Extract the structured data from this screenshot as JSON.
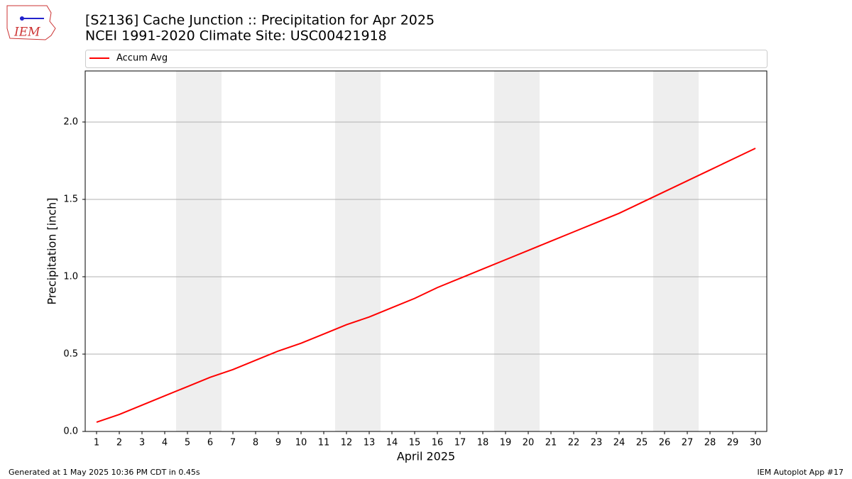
{
  "logo": "IEM",
  "footer": {
    "left": "Generated at 1 May 2025 10:36 PM CDT in 0.45s",
    "right": "IEM Autoplot App #17"
  },
  "chart_data": {
    "type": "line",
    "title": "[S2136] Cache Junction :: Precipitation for Apr 2025",
    "subtitle": "NCEI 1991-2020 Climate Site: USC00421918",
    "xlabel": "April 2025",
    "ylabel": "Precipitation [inch]",
    "x": [
      1,
      2,
      3,
      4,
      5,
      6,
      7,
      8,
      9,
      10,
      11,
      12,
      13,
      14,
      15,
      16,
      17,
      18,
      19,
      20,
      21,
      22,
      23,
      24,
      25,
      26,
      27,
      28,
      29,
      30
    ],
    "series": [
      {
        "name": "Accum Avg",
        "color": "#ff0000",
        "values": [
          0.06,
          0.11,
          0.17,
          0.23,
          0.29,
          0.35,
          0.4,
          0.46,
          0.52,
          0.57,
          0.63,
          0.69,
          0.74,
          0.8,
          0.86,
          0.93,
          0.99,
          1.05,
          1.11,
          1.17,
          1.23,
          1.29,
          1.35,
          1.41,
          1.48,
          1.55,
          1.62,
          1.69,
          1.76,
          1.83
        ]
      }
    ],
    "shaded_spans": [
      [
        4.5,
        6.5
      ],
      [
        11.5,
        13.5
      ],
      [
        18.5,
        20.5
      ],
      [
        25.5,
        27.5
      ]
    ],
    "shade_color": "#eeeeee",
    "xlim": [
      0.5,
      30.5
    ],
    "ylim": [
      0,
      2.33
    ],
    "xticks": [
      1,
      2,
      3,
      4,
      5,
      6,
      7,
      8,
      9,
      10,
      11,
      12,
      13,
      14,
      15,
      16,
      17,
      18,
      19,
      20,
      21,
      22,
      23,
      24,
      25,
      26,
      27,
      28,
      29,
      30
    ],
    "yticks": [
      {
        "value": 0,
        "label": "0.0"
      },
      0.5,
      {
        "value": 1,
        "label": "1.0"
      },
      1.5,
      {
        "value": 2,
        "label": "2.0"
      }
    ],
    "grid": true,
    "legend": "top"
  }
}
